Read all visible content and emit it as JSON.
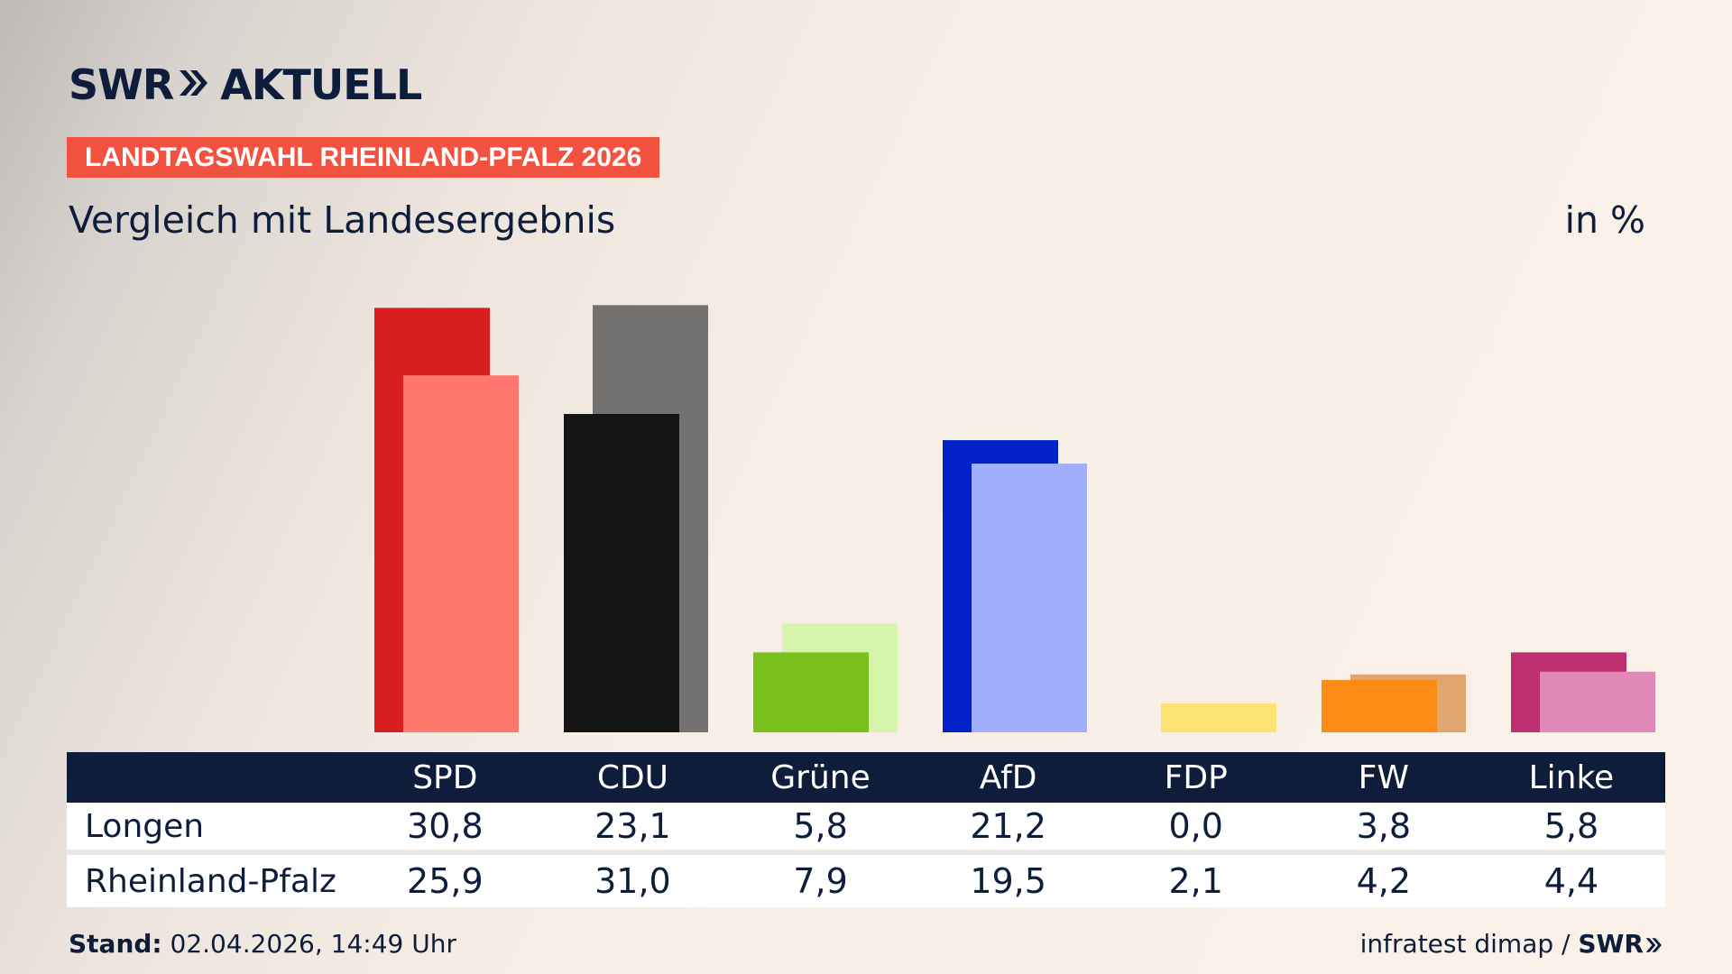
{
  "header": {
    "logo_text": "SWR",
    "logo_suffix": "AKTUELL",
    "tag": "LANDTAGSWAHL RHEINLAND-PFALZ 2026",
    "subtitle": "Vergleich mit Landesergebnis",
    "unit": "in %"
  },
  "chart_data": {
    "type": "bar",
    "categories": [
      "SPD",
      "CDU",
      "Grüne",
      "AfD",
      "FDP",
      "FW",
      "Linke"
    ],
    "series": [
      {
        "name": "Longen",
        "values": [
          30.8,
          23.1,
          5.8,
          21.2,
          0.0,
          3.8,
          5.8
        ],
        "colors": [
          "#d81f1f",
          "#141414",
          "#7abf1c",
          "#0022c6",
          "#fde374",
          "#fd8c17",
          "#bc3070"
        ]
      },
      {
        "name": "Rheinland-Pfalz",
        "values": [
          25.9,
          31.0,
          7.9,
          19.5,
          2.1,
          4.2,
          4.4
        ],
        "colors": [
          "#ff776d",
          "#737271",
          "#d6f5ac",
          "#a0aefb",
          "#fde374",
          "#dfa670",
          "#e089b7"
        ]
      }
    ],
    "ylim": [
      0,
      31
    ],
    "legend": "table below chart"
  },
  "table": {
    "headers": [
      "",
      "SPD",
      "CDU",
      "Grüne",
      "AfD",
      "FDP",
      "FW",
      "Linke"
    ],
    "rows": [
      {
        "label": "Longen",
        "cells": [
          "30,8",
          "23,1",
          "5,8",
          "21,2",
          "0,0",
          "3,8",
          "5,8"
        ]
      },
      {
        "label": "Rheinland-Pfalz",
        "cells": [
          "25,9",
          "31,0",
          "7,9",
          "19,5",
          "2,1",
          "4,2",
          "4,4"
        ]
      }
    ]
  },
  "footer": {
    "stand_label": "Stand:",
    "stand_value": "02.04.2026, 14:49 Uhr",
    "source": "infratest dimap /",
    "source_logo": "SWR"
  }
}
